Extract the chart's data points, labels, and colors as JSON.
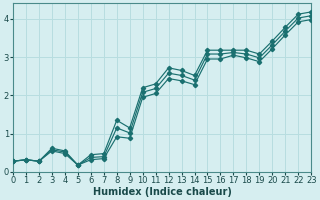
{
  "xlabel": "Humidex (Indice chaleur)",
  "bg_color": "#d6eef0",
  "grid_color": "#b8dde0",
  "line_color": "#1a7070",
  "xlim": [
    0,
    23
  ],
  "ylim": [
    0,
    4.4
  ],
  "xticks": [
    0,
    1,
    2,
    3,
    4,
    5,
    6,
    7,
    8,
    9,
    10,
    11,
    12,
    13,
    14,
    15,
    16,
    17,
    18,
    19,
    20,
    21,
    22,
    23
  ],
  "yticks": [
    0,
    1,
    2,
    3,
    4
  ],
  "line1_x": [
    0,
    1,
    2,
    3,
    4,
    5,
    6,
    7,
    8,
    9,
    10,
    11,
    12,
    13,
    14,
    15,
    16,
    17,
    18,
    19,
    20,
    21,
    22,
    23
  ],
  "line1_y": [
    0.28,
    0.32,
    0.28,
    0.62,
    0.55,
    0.18,
    0.45,
    0.48,
    1.35,
    1.15,
    2.2,
    2.3,
    2.72,
    2.65,
    2.52,
    3.18,
    3.18,
    3.18,
    3.18,
    3.08,
    3.42,
    3.78,
    4.12,
    4.18
  ],
  "line2_x": [
    0,
    1,
    2,
    3,
    4,
    5,
    6,
    7,
    8,
    9,
    10,
    11,
    12,
    13,
    14,
    15,
    16,
    17,
    18,
    19,
    20,
    21,
    22,
    23
  ],
  "line2_y": [
    0.28,
    0.32,
    0.28,
    0.58,
    0.52,
    0.18,
    0.38,
    0.4,
    1.15,
    1.02,
    2.08,
    2.18,
    2.58,
    2.52,
    2.4,
    3.08,
    3.08,
    3.12,
    3.08,
    2.98,
    3.32,
    3.68,
    4.02,
    4.08
  ],
  "line3_x": [
    0,
    1,
    2,
    3,
    4,
    5,
    6,
    7,
    8,
    9,
    10,
    11,
    12,
    13,
    14,
    15,
    16,
    17,
    18,
    19,
    20,
    21,
    22,
    23
  ],
  "line3_y": [
    0.28,
    0.32,
    0.28,
    0.55,
    0.48,
    0.18,
    0.32,
    0.35,
    0.92,
    0.88,
    1.95,
    2.05,
    2.44,
    2.38,
    2.28,
    2.95,
    2.95,
    3.05,
    2.98,
    2.88,
    3.22,
    3.58,
    3.92,
    3.98
  ]
}
